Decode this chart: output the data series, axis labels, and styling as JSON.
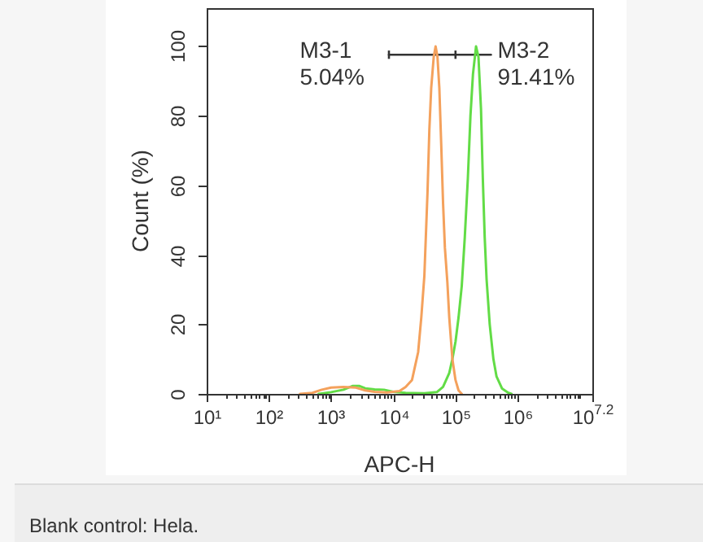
{
  "chart_data": {
    "type": "line",
    "xlabel": "APC-H",
    "ylabel": "Count (%)",
    "log": "x",
    "grid": false,
    "legend": false,
    "marker": "none",
    "line_style": "solid",
    "xlim": [
      10,
      15848932
    ],
    "ylim": [
      0,
      111
    ],
    "xticks": [
      {
        "value": 10,
        "label": "10¹"
      },
      {
        "value": 20,
        "label": null
      },
      {
        "value": 30,
        "label": null
      },
      {
        "value": 40,
        "label": null
      },
      {
        "value": 50,
        "label": null
      },
      {
        "value": 60,
        "label": null
      },
      {
        "value": 70,
        "label": null
      },
      {
        "value": 80,
        "label": null
      },
      {
        "value": 90,
        "label": null
      },
      {
        "value": 100,
        "label": "10²"
      },
      {
        "value": 200,
        "label": null
      },
      {
        "value": 300,
        "label": null
      },
      {
        "value": 400,
        "label": null
      },
      {
        "value": 500,
        "label": null
      },
      {
        "value": 600,
        "label": null
      },
      {
        "value": 700,
        "label": null
      },
      {
        "value": 800,
        "label": null
      },
      {
        "value": 900,
        "label": null
      },
      {
        "value": 1000,
        "label": "10³"
      },
      {
        "value": 2000,
        "label": null
      },
      {
        "value": 3000,
        "label": null
      },
      {
        "value": 4000,
        "label": null
      },
      {
        "value": 5000,
        "label": null
      },
      {
        "value": 6000,
        "label": null
      },
      {
        "value": 7000,
        "label": null
      },
      {
        "value": 8000,
        "label": null
      },
      {
        "value": 9000,
        "label": null
      },
      {
        "value": 10000,
        "label": "10⁴"
      },
      {
        "value": 20000,
        "label": null
      },
      {
        "value": 30000,
        "label": null
      },
      {
        "value": 40000,
        "label": null
      },
      {
        "value": 50000,
        "label": null
      },
      {
        "value": 60000,
        "label": null
      },
      {
        "value": 70000,
        "label": null
      },
      {
        "value": 80000,
        "label": null
      },
      {
        "value": 90000,
        "label": null
      },
      {
        "value": 100000,
        "label": "10⁵"
      },
      {
        "value": 200000,
        "label": null
      },
      {
        "value": 300000,
        "label": null
      },
      {
        "value": 400000,
        "label": null
      },
      {
        "value": 500000,
        "label": null
      },
      {
        "value": 600000,
        "label": null
      },
      {
        "value": 700000,
        "label": null
      },
      {
        "value": 800000,
        "label": null
      },
      {
        "value": 900000,
        "label": null
      },
      {
        "value": 1000000,
        "label": "10⁶"
      },
      {
        "value": 2000000,
        "label": null
      },
      {
        "value": 3000000,
        "label": null
      },
      {
        "value": 4000000,
        "label": null
      },
      {
        "value": 5000000,
        "label": null
      },
      {
        "value": 6000000,
        "label": null
      },
      {
        "value": 7000000,
        "label": null
      },
      {
        "value": 8000000,
        "label": null
      },
      {
        "value": 9000000,
        "label": null
      },
      {
        "value": 10000000,
        "label": null
      },
      {
        "value": 15848932,
        "label": "10$^{7.2}$"
      }
    ],
    "yticks": [
      0,
      20,
      40,
      60,
      80,
      100
    ],
    "series": [
      {
        "color": "#f4a15c",
        "x": [
          316,
          501,
          708,
          1000,
          1580,
          2510,
          3550,
          5010,
          7940,
          12600,
          15800,
          20000,
          25100,
          28200,
          31600,
          35500,
          38000,
          40700,
          44700,
          47900,
          51300,
          55000,
          58900,
          63100,
          67600,
          74100,
          79400,
          89100,
          100000,
          112000,
          126000
        ],
        "values": [
          0,
          0.3,
          1.2,
          1.8,
          2,
          1.8,
          1,
          0.6,
          0.4,
          0.8,
          2,
          4,
          12,
          22,
          34,
          58,
          76,
          88,
          97,
          100,
          97,
          88,
          72,
          55,
          42,
          32,
          22,
          10,
          4,
          1,
          0
        ]
      },
      {
        "color": "#62dc46",
        "x": [
          631,
          1000,
          1580,
          2240,
          2820,
          3550,
          5010,
          7080,
          10000,
          15800,
          31600,
          50100,
          63100,
          79400,
          89100,
          100000,
          112000,
          126000,
          141000,
          158000,
          174000,
          191000,
          214000,
          234000,
          257000,
          275000,
          295000,
          316000,
          355000,
          407000,
          457000,
          562000,
          708000,
          794000
        ],
        "values": [
          0,
          0.5,
          1.2,
          2.3,
          2.3,
          1.6,
          1.3,
          1.2,
          0.6,
          0.3,
          0.2,
          0.5,
          2,
          6,
          10,
          15,
          22,
          31,
          45,
          62,
          80,
          92,
          100,
          97,
          82,
          62,
          45,
          33,
          20,
          10,
          5,
          1.5,
          0.3,
          0
        ]
      },
      {
        "type": "line",
        "color": "#333333",
        "x": [
          8510,
          100000,
          372000
        ],
        "values": [
          97.6,
          97.6,
          97.6
        ],
        "errors": [
          1.2,
          1.2,
          null
        ]
      }
    ],
    "annotations": [
      {
        "text": "M3-1\n5.04%",
        "x": 8510,
        "y": 97.6
      },
      {
        "text": "M3-2\n91.41%",
        "x": 372000,
        "y": 97.6
      },
      "Blank control: Hela."
    ]
  }
}
